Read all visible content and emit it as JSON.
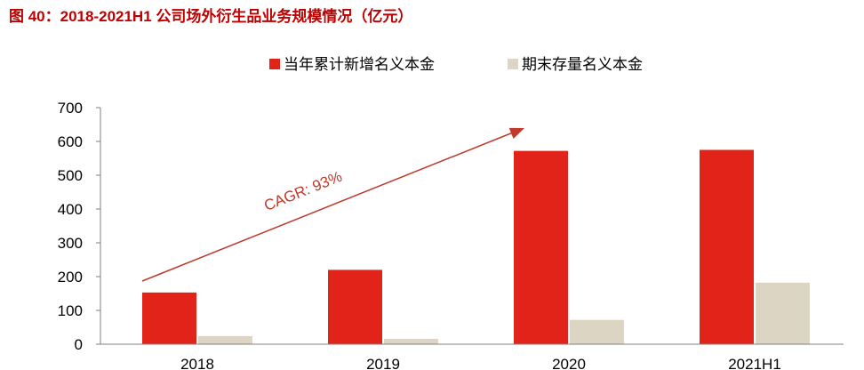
{
  "figure": {
    "title": "图 40：2018-2021H1 公司场外衍生品业务规模情况（亿元）"
  },
  "colors": {
    "title": "#c00000",
    "series_new": "#e2231a",
    "series_stock": "#ddd5c3",
    "arrow": "#c0392b",
    "axis": "#808080"
  },
  "chart_data": {
    "type": "bar",
    "categories": [
      "2018",
      "2019",
      "2020",
      "2021H1"
    ],
    "series": [
      {
        "name": "当年累计新增名义本金",
        "values": [
          153,
          220,
          572,
          575
        ]
      },
      {
        "name": "期末存量名义本金",
        "values": [
          24,
          16,
          72,
          182
        ]
      }
    ],
    "ylim": [
      0,
      700
    ],
    "yticks": [
      0,
      100,
      200,
      300,
      400,
      500,
      600,
      700
    ],
    "grid": false,
    "legend_position": "top-center",
    "annotation": {
      "text": "CAGR: 93%",
      "from_category": "2018",
      "to_category": "2020"
    },
    "xlabel": "",
    "ylabel": ""
  }
}
